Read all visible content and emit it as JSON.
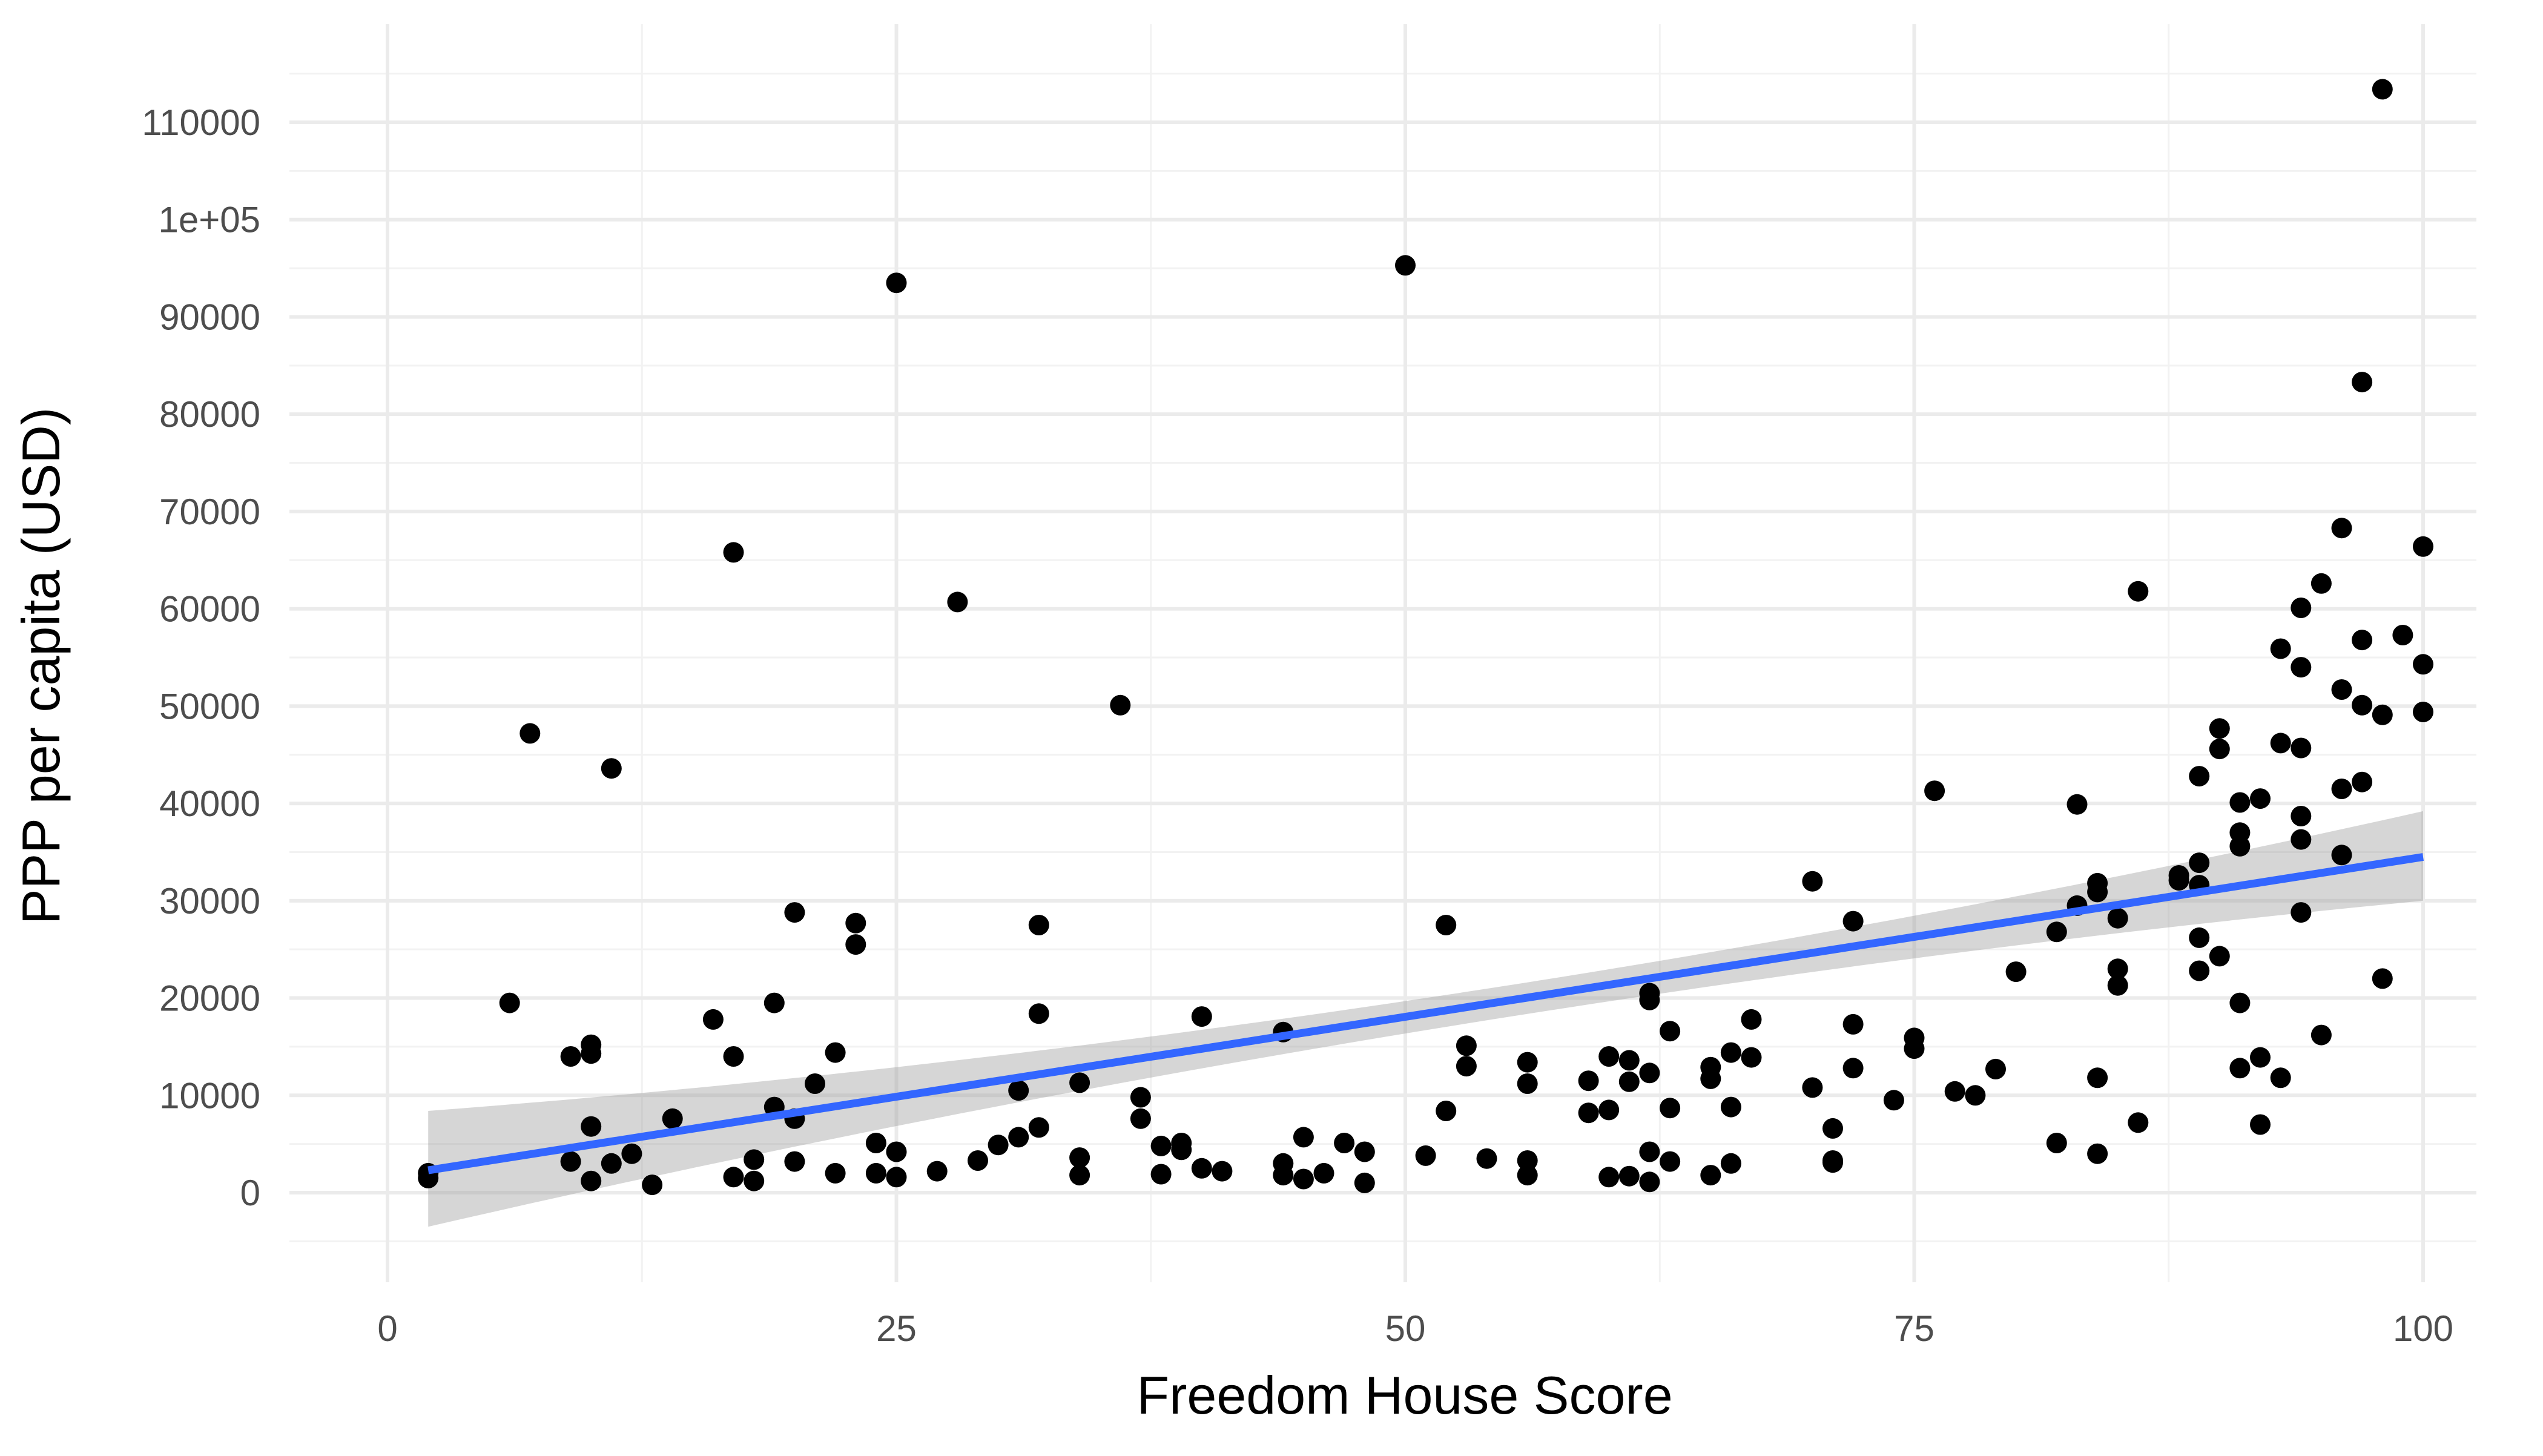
{
  "chart_data": {
    "type": "scatter",
    "title": "",
    "xlabel": "Freedom House Score",
    "ylabel": "PPP per capita (USD)",
    "xlim": [
      -5,
      103
    ],
    "ylim": [
      -5000,
      115000
    ],
    "x_ticks": [
      {
        "value": 0,
        "label": "0"
      },
      {
        "value": 25,
        "label": "25"
      },
      {
        "value": 50,
        "label": "50"
      },
      {
        "value": 75,
        "label": "75"
      },
      {
        "value": 100,
        "label": "100"
      }
    ],
    "y_ticks": [
      {
        "value": 0,
        "label": "0"
      },
      {
        "value": 10000,
        "label": "10000"
      },
      {
        "value": 20000,
        "label": "20000"
      },
      {
        "value": 30000,
        "label": "30000"
      },
      {
        "value": 40000,
        "label": "40000"
      },
      {
        "value": 50000,
        "label": "50000"
      },
      {
        "value": 60000,
        "label": "60000"
      },
      {
        "value": 70000,
        "label": "70000"
      },
      {
        "value": 80000,
        "label": "80000"
      },
      {
        "value": 90000,
        "label": "90000"
      },
      {
        "value": 100000,
        "label": "1e+05"
      },
      {
        "value": 110000,
        "label": "110000"
      }
    ],
    "grid": true,
    "legend": "none",
    "colors": {
      "point": "#000000",
      "fit_line": "#3366ff",
      "confidence_band": "#999999",
      "grid_major": "#ebebeb",
      "grid_minor": "#f2f2f2"
    },
    "points": [
      [
        2,
        1500
      ],
      [
        2,
        2000
      ],
      [
        6,
        19500
      ],
      [
        7,
        47200
      ],
      [
        9,
        14000
      ],
      [
        9,
        3200
      ],
      [
        10,
        15200
      ],
      [
        10,
        14300
      ],
      [
        10,
        6800
      ],
      [
        10,
        1200
      ],
      [
        11,
        43600
      ],
      [
        11,
        3000
      ],
      [
        12,
        4000
      ],
      [
        13,
        800
      ],
      [
        14,
        7600
      ],
      [
        16,
        17800
      ],
      [
        17,
        65800
      ],
      [
        17,
        14000
      ],
      [
        17,
        1600
      ],
      [
        18,
        3400
      ],
      [
        18,
        1200
      ],
      [
        19,
        19500
      ],
      [
        19,
        8800
      ],
      [
        20,
        28800
      ],
      [
        20,
        7600
      ],
      [
        20,
        3200
      ],
      [
        21,
        11200
      ],
      [
        22,
        14400
      ],
      [
        22,
        2000
      ],
      [
        23,
        27700
      ],
      [
        23,
        25500
      ],
      [
        24,
        5100
      ],
      [
        24,
        2000
      ],
      [
        25,
        93500
      ],
      [
        25,
        4200
      ],
      [
        25,
        1600
      ],
      [
        27,
        2200
      ],
      [
        28,
        60700
      ],
      [
        29,
        3300
      ],
      [
        30,
        4900
      ],
      [
        31,
        10500
      ],
      [
        31,
        5700
      ],
      [
        32,
        27500
      ],
      [
        32,
        18400
      ],
      [
        32,
        6700
      ],
      [
        34,
        11300
      ],
      [
        34,
        3600
      ],
      [
        34,
        1800
      ],
      [
        36,
        50100
      ],
      [
        37,
        9800
      ],
      [
        37,
        7600
      ],
      [
        38,
        4800
      ],
      [
        38,
        1900
      ],
      [
        39,
        5100
      ],
      [
        39,
        4400
      ],
      [
        40,
        18100
      ],
      [
        40,
        2500
      ],
      [
        41,
        2200
      ],
      [
        44,
        16500
      ],
      [
        44,
        3000
      ],
      [
        44,
        1800
      ],
      [
        45,
        5700
      ],
      [
        45,
        1400
      ],
      [
        46,
        2000
      ],
      [
        47,
        5100
      ],
      [
        48,
        4200
      ],
      [
        48,
        1000
      ],
      [
        50,
        95300
      ],
      [
        51,
        3800
      ],
      [
        52,
        27500
      ],
      [
        52,
        8400
      ],
      [
        53,
        15100
      ],
      [
        53,
        13000
      ],
      [
        54,
        3500
      ],
      [
        56,
        13400
      ],
      [
        56,
        11200
      ],
      [
        56,
        3300
      ],
      [
        56,
        1800
      ],
      [
        59,
        11500
      ],
      [
        59,
        8200
      ],
      [
        60,
        14000
      ],
      [
        60,
        8500
      ],
      [
        60,
        1600
      ],
      [
        61,
        13600
      ],
      [
        61,
        11400
      ],
      [
        61,
        1700
      ],
      [
        62,
        20500
      ],
      [
        62,
        19800
      ],
      [
        62,
        12300
      ],
      [
        62,
        4200
      ],
      [
        62,
        1100
      ],
      [
        63,
        16600
      ],
      [
        63,
        8700
      ],
      [
        63,
        3200
      ],
      [
        65,
        12900
      ],
      [
        65,
        11700
      ],
      [
        65,
        1800
      ],
      [
        66,
        14400
      ],
      [
        66,
        8800
      ],
      [
        66,
        3000
      ],
      [
        67,
        13900
      ],
      [
        67,
        17800
      ],
      [
        70,
        32000
      ],
      [
        70,
        10800
      ],
      [
        71,
        6600
      ],
      [
        71,
        3300
      ],
      [
        71,
        3100
      ],
      [
        72,
        27900
      ],
      [
        72,
        17300
      ],
      [
        72,
        12800
      ],
      [
        74,
        9500
      ],
      [
        75,
        15900
      ],
      [
        75,
        14800
      ],
      [
        76,
        41300
      ],
      [
        77,
        10400
      ],
      [
        78,
        10000
      ],
      [
        79,
        12700
      ],
      [
        80,
        22700
      ],
      [
        82,
        26800
      ],
      [
        82,
        5100
      ],
      [
        83,
        39900
      ],
      [
        83,
        29500
      ],
      [
        84,
        31800
      ],
      [
        84,
        30900
      ],
      [
        84,
        11800
      ],
      [
        84,
        4000
      ],
      [
        85,
        28200
      ],
      [
        85,
        23000
      ],
      [
        85,
        21300
      ],
      [
        86,
        61800
      ],
      [
        86,
        7200
      ],
      [
        88,
        32600
      ],
      [
        88,
        32100
      ],
      [
        89,
        42800
      ],
      [
        89,
        33900
      ],
      [
        89,
        31600
      ],
      [
        89,
        26200
      ],
      [
        89,
        22800
      ],
      [
        90,
        47700
      ],
      [
        90,
        45600
      ],
      [
        90,
        24300
      ],
      [
        91,
        40100
      ],
      [
        91,
        37000
      ],
      [
        91,
        35600
      ],
      [
        91,
        19500
      ],
      [
        91,
        12800
      ],
      [
        92,
        40500
      ],
      [
        92,
        13900
      ],
      [
        92,
        7000
      ],
      [
        93,
        55900
      ],
      [
        93,
        46200
      ],
      [
        93,
        11800
      ],
      [
        94,
        60100
      ],
      [
        94,
        54000
      ],
      [
        94,
        45700
      ],
      [
        94,
        38700
      ],
      [
        94,
        36300
      ],
      [
        94,
        28800
      ],
      [
        95,
        62600
      ],
      [
        95,
        16200
      ],
      [
        96,
        68300
      ],
      [
        96,
        51700
      ],
      [
        96,
        41500
      ],
      [
        96,
        34700
      ],
      [
        97,
        83300
      ],
      [
        97,
        56800
      ],
      [
        97,
        50100
      ],
      [
        97,
        42200
      ],
      [
        98,
        113400
      ],
      [
        98,
        49100
      ],
      [
        98,
        22000
      ],
      [
        99,
        57300
      ],
      [
        100,
        66400
      ],
      [
        100,
        54300
      ],
      [
        100,
        49400
      ]
    ],
    "fit": {
      "method": "linear",
      "x_range": [
        2,
        100
      ],
      "y_at_start": 2300,
      "y_at_end": 34500,
      "ci_low_at_start": -3500,
      "ci_high_at_start": 8400,
      "ci_low_at_mid": 16700,
      "ci_high_at_mid": 20000,
      "ci_low_at_end": 30000,
      "ci_high_at_end": 39200
    }
  }
}
